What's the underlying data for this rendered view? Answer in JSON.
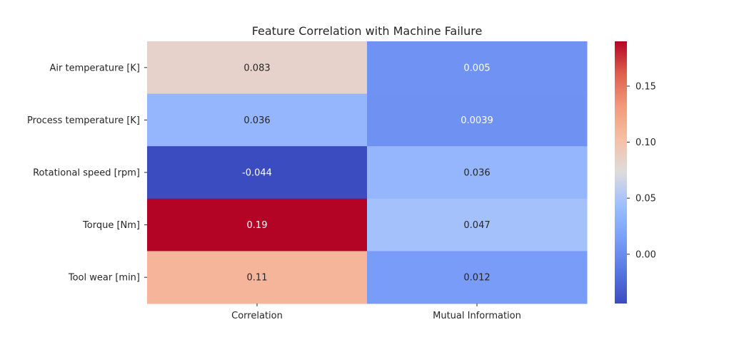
{
  "chart_data": {
    "type": "heatmap",
    "title": "Feature Correlation with Machine Failure",
    "xlabel": "",
    "ylabel": "",
    "columns": [
      "Correlation",
      "Mutual Information"
    ],
    "rows": [
      "Air temperature [K]",
      "Process temperature [K]",
      "Rotational speed [rpm]",
      "Torque [Nm]",
      "Tool wear [min]"
    ],
    "values": [
      [
        0.083,
        0.005
      ],
      [
        0.036,
        0.0039
      ],
      [
        -0.044,
        0.036
      ],
      [
        0.19,
        0.047
      ],
      [
        0.11,
        0.012
      ]
    ],
    "cell_labels": [
      [
        "0.083",
        "0.005"
      ],
      [
        "0.036",
        "0.0039"
      ],
      [
        "-0.044",
        "0.036"
      ],
      [
        "0.19",
        "0.047"
      ],
      [
        "0.11",
        "0.012"
      ]
    ],
    "colormap": "coolwarm",
    "colorbar": {
      "range": [
        -0.044,
        0.19
      ],
      "ticks": [
        0.0,
        0.05,
        0.1,
        0.15
      ],
      "tick_labels": [
        "0.00",
        "0.05",
        "0.10",
        "0.15"
      ]
    }
  }
}
